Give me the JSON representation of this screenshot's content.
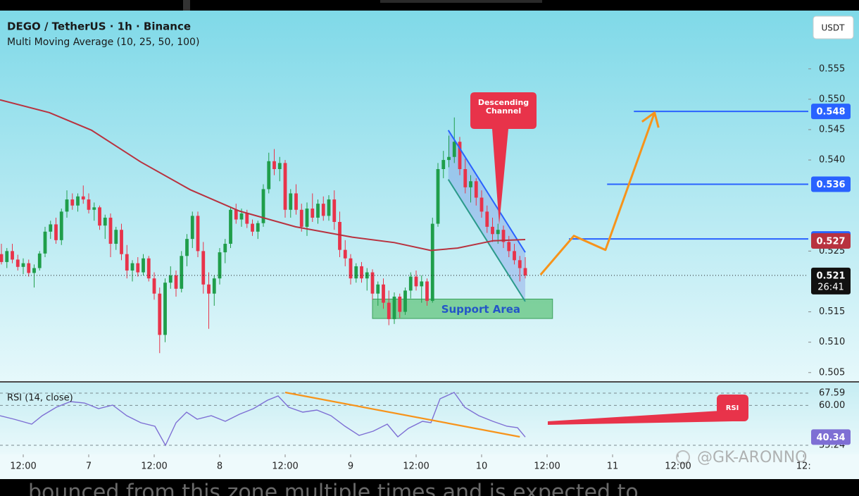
{
  "chart_data": {
    "type": "candlestick",
    "title": "DEGO / TetherUS · 1h · Binance",
    "subtitle": "Multi Moving Average (10, 25, 50, 100)",
    "currency": "USDT",
    "up_color": "#1f9e4a",
    "down_color": "#e8334a",
    "x": [
      -4,
      -3,
      -2,
      -1,
      0,
      1,
      2,
      3,
      4,
      5,
      6,
      7,
      8,
      9,
      10,
      11,
      12,
      13,
      14,
      15,
      16,
      17,
      18,
      19,
      20,
      21,
      22,
      23,
      24,
      25,
      26,
      27,
      28,
      29,
      30,
      31,
      32,
      33,
      34,
      35,
      36,
      37,
      38,
      39,
      40,
      41,
      42,
      43,
      44,
      45,
      46,
      47,
      48,
      49,
      50,
      51,
      52,
      53,
      54,
      55,
      56,
      57,
      58,
      59,
      60,
      61,
      62,
      63,
      64,
      65,
      66,
      67,
      68,
      69,
      70,
      71,
      72,
      73,
      74,
      75,
      76,
      77,
      78,
      79,
      80,
      81,
      82,
      83,
      84,
      85,
      86,
      87,
      88,
      89,
      90,
      91,
      92
    ],
    "candles": [
      [
        0.5245,
        0.5262,
        0.5228,
        0.5232
      ],
      [
        0.5232,
        0.5255,
        0.5222,
        0.525
      ],
      [
        0.525,
        0.5262,
        0.523,
        0.5236
      ],
      [
        0.5236,
        0.5244,
        0.5218,
        0.5224
      ],
      [
        0.5224,
        0.5238,
        0.5212,
        0.523
      ],
      [
        0.523,
        0.5236,
        0.5208,
        0.5214
      ],
      [
        0.5214,
        0.5228,
        0.519,
        0.5222
      ],
      [
        0.5222,
        0.525,
        0.5218,
        0.5246
      ],
      [
        0.5246,
        0.529,
        0.524,
        0.5282
      ],
      [
        0.5282,
        0.53,
        0.527,
        0.5294
      ],
      [
        0.5294,
        0.5305,
        0.5262,
        0.5268
      ],
      [
        0.5268,
        0.532,
        0.526,
        0.5315
      ],
      [
        0.5315,
        0.535,
        0.5305,
        0.5335
      ],
      [
        0.5335,
        0.5345,
        0.5318,
        0.5325
      ],
      [
        0.5325,
        0.5345,
        0.5315,
        0.534
      ],
      [
        0.534,
        0.5358,
        0.5328,
        0.5335
      ],
      [
        0.5335,
        0.5345,
        0.5312,
        0.5318
      ],
      [
        0.5318,
        0.533,
        0.53,
        0.5322
      ],
      [
        0.5322,
        0.5325,
        0.5285,
        0.5292
      ],
      [
        0.5292,
        0.531,
        0.527,
        0.5305
      ],
      [
        0.5305,
        0.5312,
        0.524,
        0.5262
      ],
      [
        0.5262,
        0.529,
        0.5252,
        0.5285
      ],
      [
        0.5285,
        0.5295,
        0.5235,
        0.5245
      ],
      [
        0.5245,
        0.526,
        0.5205,
        0.5218
      ],
      [
        0.5218,
        0.5235,
        0.52,
        0.523
      ],
      [
        0.523,
        0.524,
        0.5208,
        0.5215
      ],
      [
        0.5215,
        0.5245,
        0.521,
        0.5238
      ],
      [
        0.5238,
        0.5242,
        0.52,
        0.5205
      ],
      [
        0.5205,
        0.5215,
        0.517,
        0.518
      ],
      [
        0.518,
        0.519,
        0.5082,
        0.5112
      ],
      [
        0.5112,
        0.5205,
        0.51,
        0.5198
      ],
      [
        0.5198,
        0.5225,
        0.5188,
        0.521
      ],
      [
        0.521,
        0.5218,
        0.5175,
        0.5188
      ],
      [
        0.5188,
        0.525,
        0.5182,
        0.5242
      ],
      [
        0.5242,
        0.5278,
        0.5225,
        0.527
      ],
      [
        0.527,
        0.5315,
        0.5255,
        0.5308
      ],
      [
        0.5308,
        0.5315,
        0.524,
        0.525
      ],
      [
        0.525,
        0.5265,
        0.518,
        0.5195
      ],
      [
        0.5195,
        0.5215,
        0.5122,
        0.518
      ],
      [
        0.518,
        0.521,
        0.516,
        0.5205
      ],
      [
        0.5205,
        0.5255,
        0.5195,
        0.5248
      ],
      [
        0.5248,
        0.527,
        0.523,
        0.5262
      ],
      [
        0.5262,
        0.5322,
        0.5255,
        0.5318
      ],
      [
        0.5318,
        0.5328,
        0.5295,
        0.5302
      ],
      [
        0.5302,
        0.532,
        0.529,
        0.5312
      ],
      [
        0.5312,
        0.5318,
        0.5288,
        0.5295
      ],
      [
        0.5295,
        0.5302,
        0.5275,
        0.5282
      ],
      [
        0.5282,
        0.53,
        0.527,
        0.5296
      ],
      [
        0.5296,
        0.536,
        0.529,
        0.5352
      ],
      [
        0.5352,
        0.5412,
        0.5345,
        0.5398
      ],
      [
        0.5398,
        0.5418,
        0.5375,
        0.5385
      ],
      [
        0.5385,
        0.5405,
        0.5365,
        0.5395
      ],
      [
        0.5395,
        0.54,
        0.5305,
        0.5318
      ],
      [
        0.5318,
        0.5352,
        0.5305,
        0.5345
      ],
      [
        0.5345,
        0.536,
        0.531,
        0.5318
      ],
      [
        0.5318,
        0.5328,
        0.5282,
        0.529
      ],
      [
        0.529,
        0.533,
        0.5275,
        0.532
      ],
      [
        0.532,
        0.5345,
        0.5298,
        0.5305
      ],
      [
        0.5305,
        0.5335,
        0.5295,
        0.5328
      ],
      [
        0.5328,
        0.534,
        0.53,
        0.5308
      ],
      [
        0.5308,
        0.5342,
        0.53,
        0.5335
      ],
      [
        0.5335,
        0.535,
        0.5285,
        0.5298
      ],
      [
        0.5298,
        0.5315,
        0.524,
        0.5252
      ],
      [
        0.5252,
        0.5268,
        0.5225,
        0.5238
      ],
      [
        0.5238,
        0.5245,
        0.5195,
        0.5205
      ],
      [
        0.5205,
        0.523,
        0.5198,
        0.5225
      ],
      [
        0.5225,
        0.5232,
        0.5198,
        0.5205
      ],
      [
        0.5205,
        0.5222,
        0.5185,
        0.5215
      ],
      [
        0.5215,
        0.522,
        0.517,
        0.518
      ],
      [
        0.518,
        0.52,
        0.516,
        0.5195
      ],
      [
        0.5195,
        0.5205,
        0.5155,
        0.5165
      ],
      [
        0.5165,
        0.5185,
        0.5128,
        0.5138
      ],
      [
        0.5138,
        0.5182,
        0.513,
        0.5175
      ],
      [
        0.5175,
        0.518,
        0.514,
        0.515
      ],
      [
        0.515,
        0.519,
        0.5145,
        0.5185
      ],
      [
        0.5185,
        0.5215,
        0.5172,
        0.5208
      ],
      [
        0.5208,
        0.5218,
        0.5185,
        0.5192
      ],
      [
        0.5192,
        0.521,
        0.5165,
        0.52
      ],
      [
        0.52,
        0.5205,
        0.516,
        0.5168
      ],
      [
        0.5168,
        0.5305,
        0.5165,
        0.5295
      ],
      [
        0.5295,
        0.5395,
        0.529,
        0.5385
      ],
      [
        0.5385,
        0.5415,
        0.537,
        0.54
      ],
      [
        0.54,
        0.544,
        0.5388,
        0.5405
      ],
      [
        0.5405,
        0.547,
        0.5395,
        0.543
      ],
      [
        0.543,
        0.5438,
        0.5375,
        0.5385
      ],
      [
        0.5385,
        0.5402,
        0.5345,
        0.5355
      ],
      [
        0.5355,
        0.5375,
        0.533,
        0.5365
      ],
      [
        0.5365,
        0.537,
        0.5325,
        0.5338
      ],
      [
        0.5338,
        0.535,
        0.5305,
        0.5315
      ],
      [
        0.5315,
        0.5325,
        0.528,
        0.529
      ],
      [
        0.529,
        0.5305,
        0.5265,
        0.5278
      ],
      [
        0.5278,
        0.5295,
        0.5262,
        0.5285
      ],
      [
        0.5285,
        0.5292,
        0.5255,
        0.5265
      ],
      [
        0.5265,
        0.5275,
        0.524,
        0.525
      ],
      [
        0.525,
        0.5262,
        0.5228,
        0.5235
      ],
      [
        0.5235,
        0.5242,
        0.52,
        0.5222
      ],
      [
        0.5222,
        0.524,
        0.5205,
        0.521
      ]
    ],
    "xlim": [
      -4.26,
      143.87
    ],
    "xticks": [
      {
        "value": 0,
        "label": "12:00"
      },
      {
        "value": 12,
        "label": "7"
      },
      {
        "value": 24,
        "label": "12:00"
      },
      {
        "value": 36,
        "label": "8"
      },
      {
        "value": 48,
        "label": "12:00"
      },
      {
        "value": 60,
        "label": "9"
      },
      {
        "value": 72,
        "label": "12:00"
      },
      {
        "value": 84,
        "label": "10"
      },
      {
        "value": 96,
        "label": "12:00"
      },
      {
        "value": 108,
        "label": "11"
      },
      {
        "value": 120,
        "label": "12:00"
      },
      {
        "value": 143,
        "label": "12:"
      }
    ],
    "ylim": [
      0.5037,
      0.5646
    ],
    "yticks": [
      0.555,
      {
        "value": 0.55,
        "label": "0.550"
      },
      0.545,
      {
        "value": 0.54,
        "label": "0.540"
      },
      0.525,
      0.515,
      {
        "value": 0.51,
        "label": "0.510"
      },
      0.505
    ],
    "moving_average": {
      "color": "#b8323f",
      "value_label": "0.527",
      "x": [
        -4.26,
        4.77,
        12.5,
        21.5,
        30.6,
        39.6,
        49.9,
        60.3,
        68.0,
        74.7,
        79.6,
        86.1,
        92.0
      ],
      "values": [
        0.5499,
        0.5478,
        0.5449,
        0.5397,
        0.5351,
        0.5316,
        0.529,
        0.5273,
        0.5264,
        0.5251,
        0.5255,
        0.5267,
        0.5269
      ]
    },
    "current_price": {
      "value": 0.521,
      "countdown": "26:41"
    },
    "level_color": "#2962ff",
    "levels": [
      {
        "value": 0.548,
        "start": 111.9
      },
      {
        "value": 0.536,
        "start": 107.0
      },
      {
        "value": 0.527,
        "start": 100.0
      }
    ],
    "channel": {
      "label": "Descending Channel",
      "upper": {
        "x": [
          77.9,
          92.0
        ],
        "values": [
          0.5449,
          0.5248
        ]
      },
      "lower": {
        "x": [
          77.9,
          92.0
        ],
        "values": [
          0.5368,
          0.5167
        ]
      }
    },
    "support_zone": {
      "label": "Support Area",
      "x": [
        64.0,
        97.0
      ],
      "range": [
        0.5139,
        0.5171
      ]
    },
    "projection": {
      "color": "#f7931a",
      "x": [
        94.8,
        100.9,
        106.7,
        115.7
      ],
      "values": [
        0.5211,
        0.5275,
        0.5252,
        0.5478
      ]
    },
    "rsi": {
      "title": "RSI (14, close)",
      "color": "#7e6fd4",
      "annotation": "RSI",
      "ylim": [
        29.56,
        74.15
      ],
      "yticks": [
        67.59,
        {
          "value": 60,
          "label": "60.00"
        },
        35.24
      ],
      "x": [
        -4.26,
        -1.68,
        1.55,
        3.48,
        6.06,
        8.65,
        11.23,
        13.81,
        16.39,
        18.97,
        21.55,
        24.13,
        26.06,
        28.0,
        29.94,
        31.87,
        34.45,
        37.03,
        39.61,
        42.19,
        44.77,
        46.71,
        48.65,
        51.23,
        53.81,
        56.39,
        58.97,
        61.55,
        64.13,
        66.71,
        68.65,
        70.58,
        73.16,
        74.71,
        76.39,
        78.97,
        80.9,
        83.48,
        86.06,
        88.65,
        90.58,
        92.0
      ],
      "values": [
        53.6,
        51.41,
        48.35,
        53.6,
        58.84,
        62.34,
        61.47,
        57.97,
        60.16,
        53.6,
        49.23,
        47.04,
        35.23,
        49.23,
        55.78,
        51.41,
        53.6,
        50.1,
        54.47,
        57.97,
        63.22,
        65.84,
        58.84,
        55.78,
        57.1,
        53.6,
        47.04,
        41.35,
        43.98,
        48.35,
        40.48,
        45.73,
        50.1,
        49.23,
        64.09,
        68.03,
        58.84,
        53.6,
        50.1,
        47.04,
        46.16,
        40.34
      ],
      "trendline": {
        "color": "#f7931a",
        "x": [
          48.0,
          91.0
        ],
        "values": [
          68.03,
          40.48
        ]
      }
    }
  },
  "watermark": "@GK-ARONNO",
  "caption": "bounced from this zone multiple times and is expected to"
}
